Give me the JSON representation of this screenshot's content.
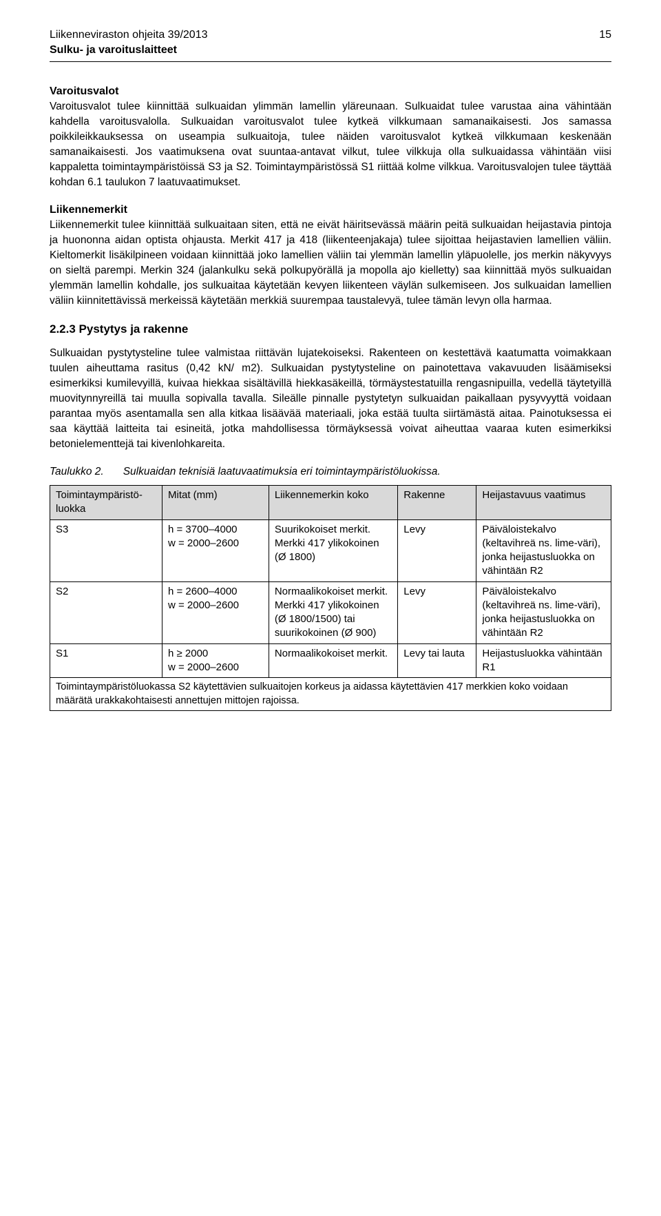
{
  "header": {
    "doc_title": "Liikenneviraston ohjeita 39/2013",
    "doc_subtitle": "Sulku- ja varoituslaitteet",
    "page_number": "15"
  },
  "sec1": {
    "title": "Varoitusvalot",
    "body": "Varoitusvalot tulee kiinnittää sulkuaidan ylimmän lamellin yläreunaan. Sulkuaidat tulee varustaa aina vähintään kahdella varoitusvalolla. Sulkuaidan varoitusvalot tulee kytkeä vilkkumaan samanaikaisesti. Jos samassa poikkileikkauksessa on useampia sulkuaitoja, tulee näiden varoitusvalot kytkeä vilkkumaan keskenään samanaikaisesti. Jos vaatimuksena ovat suuntaa-antavat vilkut, tulee vilkkuja olla sulkuaidassa vähintään viisi kappaletta toimintaympäristöissä S3 ja S2. Toimintaympäristössä S1 riittää kolme vilkkua. Varoitusvalojen tulee täyttää kohdan 6.1 taulukon 7 laatuvaatimukset."
  },
  "sec2": {
    "title": "Liikennemerkit",
    "body": "Liikennemerkit tulee kiinnittää sulkuaitaan siten, että ne eivät häiritsevässä määrin peitä sulkuaidan heijastavia pintoja ja huononna aidan optista ohjausta. Merkit 417 ja 418 (liikenteenjakaja) tulee sijoittaa heijastavien lamellien väliin. Kieltomerkit lisäkilpineen voidaan kiinnittää joko lamellien väliin tai ylemmän lamellin yläpuolelle, jos merkin näkyvyys on sieltä parempi. Merkin 324 (jalankulku sekä polkupyörällä ja mopolla ajo kielletty) saa kiinnittää myös sulkuaidan ylemmän lamellin kohdalle, jos sulkuaitaa käytetään kevyen liikenteen väylän sulkemiseen. Jos sulkuaidan lamellien väliin kiinnitettävissä merkeissä käytetään merkkiä suurempaa taustalevyä, tulee tämän levyn olla harmaa."
  },
  "sec3": {
    "title": "2.2.3   Pystytys ja rakenne",
    "body": "Sulkuaidan pystytysteline tulee valmistaa riittävän lujatekoiseksi. Rakenteen on kestettävä kaatumatta voimakkaan tuulen aiheuttama rasitus (0,42 kN/ m2). Sulkuaidan pystytysteline on painotettava vakavuuden lisäämiseksi esimerkiksi kumilevyillä, kuivaa hiekkaa sisältävillä hiekkasäkeillä, törmäystestatuilla rengasnipuilla, vedellä täytetyillä muovitynnyreillä tai muulla sopivalla tavalla. Sileälle pinnalle pystytetyn sulkuaidan paikallaan pysyvyyttä voidaan parantaa myös asentamalla sen alla kitkaa lisäävää materiaali, joka estää tuulta siirtämästä aitaa. Painotuksessa ei saa käyttää laitteita tai esineitä, jotka mahdollisessa törmäyksessä voivat aiheuttaa vaaraa kuten esimerkiksi betonielementtejä tai kivenlohkareita."
  },
  "table": {
    "caption_label": "Taulukko 2.",
    "caption_text": "Sulkuaidan teknisiä laatuvaatimuksia eri toimintaympäristöluokissa.",
    "columns": [
      "Toimintaympäristö-luokka",
      "Mitat (mm)",
      "Liikennemerkin koko",
      "Rakenne",
      "Heijastavuus vaatimus"
    ],
    "colwidths": [
      "20%",
      "19%",
      "23%",
      "14%",
      "24%"
    ],
    "rows": [
      {
        "c0": "S3",
        "c1": "h = 3700–4000\nw = 2000–2600",
        "c2": "Suurikokoiset merkit. Merkki 417 ylikokoinen (Ø 1800)",
        "c3": "Levy",
        "c4": "Päiväloistekalvo (keltavihreä ns. lime-väri), jonka heijastusluokka on vähintään R2"
      },
      {
        "c0": "S2",
        "c1": "h = 2600–4000\nw = 2000–2600",
        "c2": "Normaalikokoiset merkit. Merkki 417 ylikokoinen (Ø 1800/1500) tai suurikokoinen (Ø 900)",
        "c3": "Levy",
        "c4": "Päiväloistekalvo (keltavihreä ns. lime-väri), jonka heijastusluokka on vähintään R2"
      },
      {
        "c0": "S1",
        "c1": "h ≥ 2000\nw = 2000–2600",
        "c2": "Normaalikokoiset merkit.",
        "c3": "Levy tai lauta",
        "c4": "Heijastusluokka vähintään R1"
      }
    ],
    "footnote": "Toimintaympäristöluokassa S2 käytettävien sulkuaitojen korkeus ja aidassa käytettävien 417 merkkien koko voidaan määrätä urakkakohtaisesti annettujen mittojen rajoissa.",
    "header_bg": "#d9d9d9",
    "border_color": "#000000"
  }
}
